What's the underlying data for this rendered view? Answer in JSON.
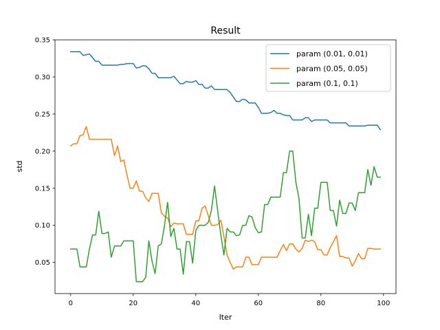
{
  "chart_data": {
    "type": "line",
    "title": "Result",
    "xlabel": "Iter",
    "ylabel": "std",
    "xlim": [
      -5,
      104
    ],
    "ylim": [
      0.008,
      0.35
    ],
    "xticks": [
      0,
      20,
      40,
      60,
      80,
      100
    ],
    "yticks": [
      0.05,
      0.1,
      0.15,
      0.2,
      0.25,
      0.3,
      0.35
    ],
    "ytick_labels": [
      "0.05",
      "0.10",
      "0.15",
      "0.20",
      "0.25",
      "0.30",
      "0.35"
    ],
    "grid": false,
    "legend_position": "top-right",
    "x": [
      0,
      1,
      2,
      3,
      4,
      5,
      6,
      7,
      8,
      9,
      10,
      11,
      12,
      13,
      14,
      15,
      16,
      17,
      18,
      19,
      20,
      21,
      22,
      23,
      24,
      25,
      26,
      27,
      28,
      29,
      30,
      31,
      32,
      33,
      34,
      35,
      36,
      37,
      38,
      39,
      40,
      41,
      42,
      43,
      44,
      45,
      46,
      47,
      48,
      49,
      50,
      51,
      52,
      53,
      54,
      55,
      56,
      57,
      58,
      59,
      60,
      61,
      62,
      63,
      64,
      65,
      66,
      67,
      68,
      69,
      70,
      71,
      72,
      73,
      74,
      75,
      76,
      77,
      78,
      79,
      80,
      81,
      82,
      83,
      84,
      85,
      86,
      87,
      88,
      89,
      90,
      91,
      92,
      93,
      94,
      95,
      96,
      97,
      98,
      99
    ],
    "series": [
      {
        "name": "param (0.01, 0.01)",
        "color": "#1f77b4",
        "values": [
          0.334,
          0.334,
          0.334,
          0.334,
          0.329,
          0.33,
          0.331,
          0.326,
          0.321,
          0.321,
          0.316,
          0.316,
          0.316,
          0.316,
          0.316,
          0.316,
          0.317,
          0.317,
          0.318,
          0.318,
          0.318,
          0.312,
          0.313,
          0.315,
          0.315,
          0.311,
          0.305,
          0.305,
          0.299,
          0.299,
          0.299,
          0.299,
          0.299,
          0.301,
          0.296,
          0.291,
          0.291,
          0.294,
          0.293,
          0.293,
          0.295,
          0.29,
          0.29,
          0.285,
          0.285,
          0.288,
          0.283,
          0.283,
          0.283,
          0.283,
          0.283,
          0.279,
          0.273,
          0.267,
          0.267,
          0.27,
          0.269,
          0.265,
          0.265,
          0.265,
          0.259,
          0.251,
          0.251,
          0.251,
          0.252,
          0.255,
          0.251,
          0.251,
          0.249,
          0.248,
          0.248,
          0.242,
          0.242,
          0.242,
          0.242,
          0.245,
          0.245,
          0.24,
          0.242,
          0.242,
          0.242,
          0.242,
          0.242,
          0.238,
          0.238,
          0.238,
          0.238,
          0.238,
          0.238,
          0.234,
          0.234,
          0.234,
          0.234,
          0.234,
          0.234,
          0.235,
          0.235,
          0.235,
          0.235,
          0.229
        ]
      },
      {
        "name": "param (0.05, 0.05)",
        "color": "#ff7f0e",
        "values": [
          0.207,
          0.21,
          0.21,
          0.221,
          0.222,
          0.233,
          0.216,
          0.216,
          0.216,
          0.216,
          0.216,
          0.216,
          0.216,
          0.216,
          0.194,
          0.207,
          0.186,
          0.188,
          0.168,
          0.15,
          0.15,
          0.16,
          0.146,
          0.146,
          0.137,
          0.132,
          0.143,
          0.143,
          0.143,
          0.117,
          0.112,
          0.11,
          0.098,
          0.103,
          0.102,
          0.102,
          0.102,
          0.088,
          0.088,
          0.088,
          0.106,
          0.106,
          0.123,
          0.126,
          0.113,
          0.1,
          0.1,
          0.101,
          0.107,
          0.085,
          0.06,
          0.05,
          0.041,
          0.044,
          0.044,
          0.044,
          0.057,
          0.057,
          0.047,
          0.047,
          0.047,
          0.057,
          0.057,
          0.057,
          0.057,
          0.057,
          0.057,
          0.066,
          0.074,
          0.066,
          0.075,
          0.075,
          0.068,
          0.064,
          0.069,
          0.08,
          0.078,
          0.08,
          0.078,
          0.067,
          0.067,
          0.06,
          0.06,
          0.07,
          0.078,
          0.086,
          0.058,
          0.058,
          0.056,
          0.056,
          0.045,
          0.052,
          0.062,
          0.055,
          0.055,
          0.069,
          0.069,
          0.068,
          0.068,
          0.068
        ]
      },
      {
        "name": "param (0.1, 0.1)",
        "color": "#2ca02c",
        "values": [
          0.068,
          0.068,
          0.068,
          0.044,
          0.044,
          0.044,
          0.068,
          0.087,
          0.087,
          0.119,
          0.089,
          0.089,
          0.091,
          0.057,
          0.072,
          0.072,
          0.072,
          0.079,
          0.079,
          0.079,
          0.079,
          0.024,
          0.024,
          0.024,
          0.03,
          0.079,
          0.052,
          0.035,
          0.072,
          0.075,
          0.1,
          0.131,
          0.085,
          0.096,
          0.068,
          0.068,
          0.034,
          0.078,
          0.078,
          0.049,
          0.093,
          0.1,
          0.1,
          0.1,
          0.104,
          0.12,
          0.153,
          0.12,
          0.087,
          0.06,
          0.096,
          0.091,
          0.091,
          0.086,
          0.087,
          0.1,
          0.1,
          0.113,
          0.111,
          0.097,
          0.09,
          0.091,
          0.128,
          0.128,
          0.138,
          0.138,
          0.138,
          0.138,
          0.171,
          0.171,
          0.2,
          0.2,
          0.158,
          0.136,
          0.083,
          0.083,
          0.115,
          0.086,
          0.123,
          0.123,
          0.158,
          0.158,
          0.158,
          0.12,
          0.12,
          0.099,
          0.134,
          0.116,
          0.116,
          0.13,
          0.13,
          0.12,
          0.144,
          0.144,
          0.144,
          0.175,
          0.154,
          0.179,
          0.165,
          0.165
        ]
      }
    ]
  }
}
